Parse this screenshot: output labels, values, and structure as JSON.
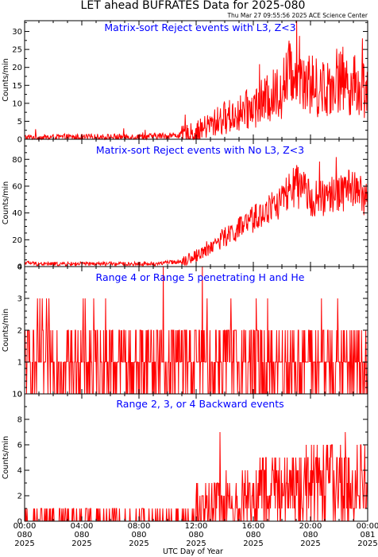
{
  "header": {
    "title": "LET ahead BUFRATES Data for 2025-080",
    "timestamp": "Thu Mar 27 09:55:56 2025 ACE Science Center"
  },
  "colors": {
    "series": "#ff0000",
    "panel_title": "#0000ff",
    "axes": "#000000",
    "background": "#ffffff"
  },
  "chart_data": [
    {
      "type": "line",
      "title": "Matrix-sort Reject events with L3, Z<3",
      "ylabel": "Counts/min",
      "ylim": [
        0,
        33
      ],
      "yticks": [
        0,
        5,
        10,
        15,
        20,
        25,
        30
      ],
      "x_unit": "UTC hours since 2025-080 00:00",
      "xlim": [
        0,
        24
      ],
      "grid": false,
      "series": [
        {
          "x": [
            0,
            1,
            2,
            3,
            4,
            5,
            6,
            7,
            8,
            9,
            10,
            11,
            12,
            13,
            14,
            15,
            16,
            17,
            18,
            19,
            20,
            21,
            22,
            23,
            24
          ],
          "y": [
            0.5,
            0.5,
            0.5,
            0.6,
            0.5,
            0.6,
            0.6,
            0.7,
            0.7,
            0.8,
            1,
            1.2,
            2,
            4,
            6,
            7,
            9,
            11,
            14,
            22,
            15,
            14,
            17,
            15,
            14
          ]
        }
      ]
    },
    {
      "type": "line",
      "title": "Matrix-sort Reject events with No L3, Z<3",
      "ylabel": "Counts/min",
      "ylim": [
        0,
        95
      ],
      "yticks": [
        0,
        20,
        40,
        60,
        80
      ],
      "x_unit": "UTC hours since 2025-080 00:00",
      "xlim": [
        0,
        24
      ],
      "grid": false,
      "series": [
        {
          "x": [
            0,
            1,
            2,
            3,
            4,
            5,
            6,
            7,
            8,
            9,
            10,
            11,
            12,
            13,
            14,
            15,
            16,
            17,
            18,
            19,
            20,
            21,
            22,
            23,
            24
          ],
          "y": [
            3,
            2,
            2,
            2,
            2,
            2,
            2,
            2,
            2,
            2,
            3,
            4,
            8,
            15,
            22,
            28,
            35,
            42,
            50,
            60,
            52,
            50,
            55,
            60,
            48
          ]
        }
      ]
    },
    {
      "type": "line",
      "title": "Range 4 or Range 5 penetrating H and He",
      "ylabel": "Counts/min",
      "ylim": [
        0,
        4
      ],
      "yticks": [
        0,
        1,
        2,
        3,
        4
      ],
      "x_unit": "UTC hours since 2025-080 00:00",
      "xlim": [
        0,
        24
      ],
      "grid": false,
      "series": [
        {
          "x": [
            0,
            1,
            2,
            3,
            4,
            5,
            6,
            7,
            8,
            9,
            10,
            11,
            12,
            13,
            14,
            15,
            16,
            17,
            18,
            19,
            20,
            21,
            22,
            23,
            24
          ],
          "y": [
            1,
            1,
            1,
            1,
            1,
            1,
            1,
            1,
            1,
            1,
            1,
            1,
            1,
            1,
            1,
            1,
            1,
            1,
            1,
            1,
            1,
            1,
            1,
            1,
            1
          ]
        }
      ]
    },
    {
      "type": "line",
      "title": "Range 2, 3, or 4 Backward events",
      "ylabel": "Counts/min",
      "ylim": [
        0,
        10
      ],
      "yticks": [
        0,
        2,
        4,
        6,
        8,
        10
      ],
      "xlabel": "UTC Day of Year",
      "x_unit": "UTC hours since 2025-080 00:00",
      "xlim": [
        0,
        24
      ],
      "xticks": [
        {
          "time": "00:00",
          "doy": "080",
          "year": "2025"
        },
        {
          "time": "04:00",
          "doy": "080",
          "year": "2025"
        },
        {
          "time": "08:00",
          "doy": "080",
          "year": "2025"
        },
        {
          "time": "12:00",
          "doy": "080",
          "year": "2025"
        },
        {
          "time": "16:00",
          "doy": "080",
          "year": "2025"
        },
        {
          "time": "20:00",
          "doy": "080",
          "year": "2025"
        },
        {
          "time": "00:00",
          "doy": "081",
          "year": "2025"
        }
      ],
      "grid": false,
      "series": [
        {
          "x": [
            0,
            1,
            2,
            3,
            4,
            5,
            6,
            7,
            8,
            9,
            10,
            11,
            12,
            13,
            14,
            15,
            16,
            17,
            18,
            19,
            20,
            21,
            22,
            23,
            24
          ],
          "y": [
            0.2,
            0.2,
            0.2,
            0.2,
            0.2,
            0.2,
            0.2,
            0.2,
            0.2,
            0.3,
            0.3,
            0.4,
            0.8,
            1.2,
            1.5,
            1.6,
            2,
            2.2,
            2.5,
            2.6,
            2.8,
            2.8,
            3,
            3,
            2.6
          ]
        }
      ]
    }
  ]
}
